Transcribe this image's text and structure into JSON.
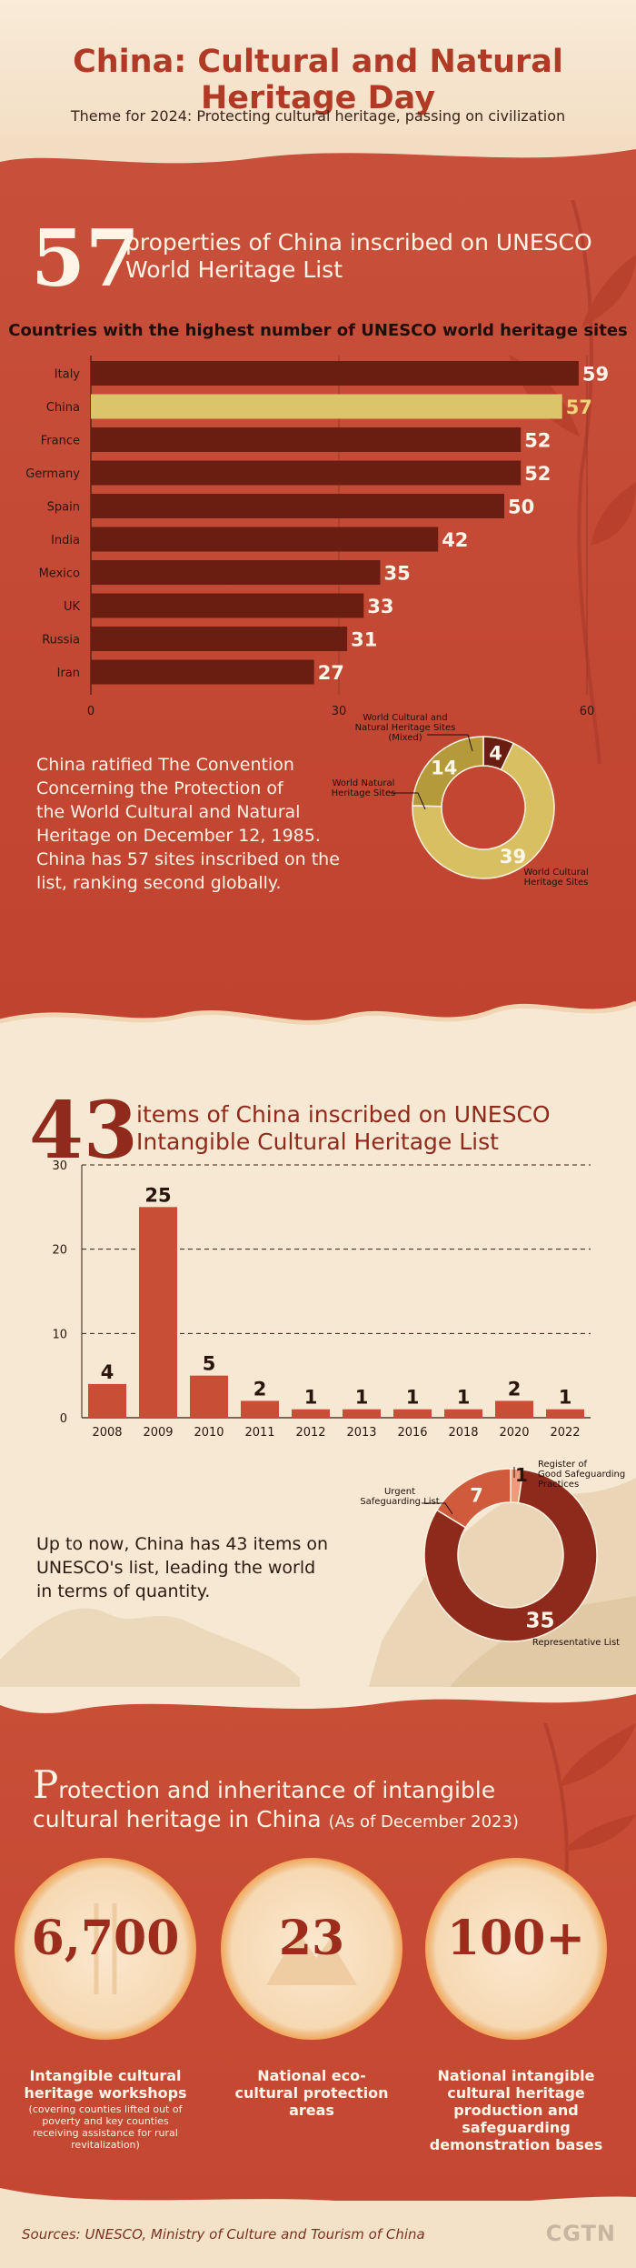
{
  "header": {
    "title": "China: Cultural and Natural Heritage Day",
    "theme": "Theme for 2024: Protecting cultural heritage, passing on civilization"
  },
  "whl": {
    "number": "57",
    "headline_line1": "properties of China inscribed on UNESCO",
    "headline_line2": "World Heritage List",
    "paragraph_lines": [
      "China ratified The Convention",
      "Concerning the Protection of",
      "the World Cultural and Natural",
      "Heritage on December 12, 1985.",
      "China has 57 sites inscribed on the",
      "list, ranking second globally."
    ]
  },
  "ich": {
    "number": "43",
    "headline_line1": "items of China inscribed on UNESCO",
    "headline_line2": "Intangible Cultural Heritage List",
    "paragraph_lines": [
      "Up to now, China has 43 items on",
      "UNESCO's list, leading the world",
      "in terms of quantity."
    ]
  },
  "protection": {
    "title_initial": "P",
    "title_rest": "rotection and inheritance of intangible",
    "title_line2": "cultural heritage in China",
    "title_note": "(As of December 2023)",
    "stats": [
      {
        "value": "6,700",
        "label": "Intangible cultural heritage workshops",
        "note": "(covering counties lifted out of poverty and key counties receiving assistance for rural revitalization)"
      },
      {
        "value": "23",
        "label": "National eco-cultural protection areas",
        "note": ""
      },
      {
        "value": "100+",
        "label": "National intangible cultural heritage production and safeguarding demonstration bases",
        "note": ""
      }
    ]
  },
  "footer": {
    "sources": "Sources: UNESCO, Ministry of Culture and Tourism of China",
    "brand": "CGTN"
  },
  "colors": {
    "bar_dark": "#6a1e12",
    "bar_highlight": "#dcc46a",
    "donut_gold": "#d8c062",
    "donut_olive": "#b59a3c",
    "donut_dark": "#6a1e12",
    "ich_bar": "#c94e36",
    "ich_donut_dark": "#8e2a1c",
    "ich_donut_mid": "#d05a3c",
    "ich_donut_light": "#ef9a7a"
  },
  "chart_data": [
    {
      "type": "bar",
      "orientation": "horizontal",
      "title": "Countries with the highest number of UNESCO world heritage sites",
      "categories": [
        "Italy",
        "China",
        "France",
        "Germany",
        "Spain",
        "India",
        "Mexico",
        "UK",
        "Russia",
        "Iran"
      ],
      "values": [
        59,
        57,
        52,
        52,
        50,
        42,
        35,
        33,
        31,
        27
      ],
      "highlight": "China",
      "xticks": [
        0,
        30,
        60
      ],
      "xlim": [
        0,
        60
      ]
    },
    {
      "type": "pie",
      "donut": true,
      "slices": [
        {
          "label": "World Cultural and Natural Heritage Sites (Mixed)",
          "value": 4
        },
        {
          "label": "World Cultural Heritage Sites",
          "value": 39
        },
        {
          "label": "World Natural Heritage Sites",
          "value": 14
        }
      ]
    },
    {
      "type": "bar",
      "categories": [
        "2008",
        "2009",
        "2010",
        "2011",
        "2012",
        "2013",
        "2016",
        "2018",
        "2020",
        "2022"
      ],
      "values": [
        4,
        25,
        5,
        2,
        1,
        1,
        1,
        1,
        2,
        1
      ],
      "yticks": [
        0,
        10,
        20,
        30
      ],
      "ylim": [
        0,
        30
      ],
      "grid": true
    },
    {
      "type": "pie",
      "donut": true,
      "slices": [
        {
          "label": "Register of Good Safeguarding Practices",
          "value": 1
        },
        {
          "label": "Representative List",
          "value": 35
        },
        {
          "label": "Urgent Safeguarding List",
          "value": 7
        }
      ]
    }
  ]
}
